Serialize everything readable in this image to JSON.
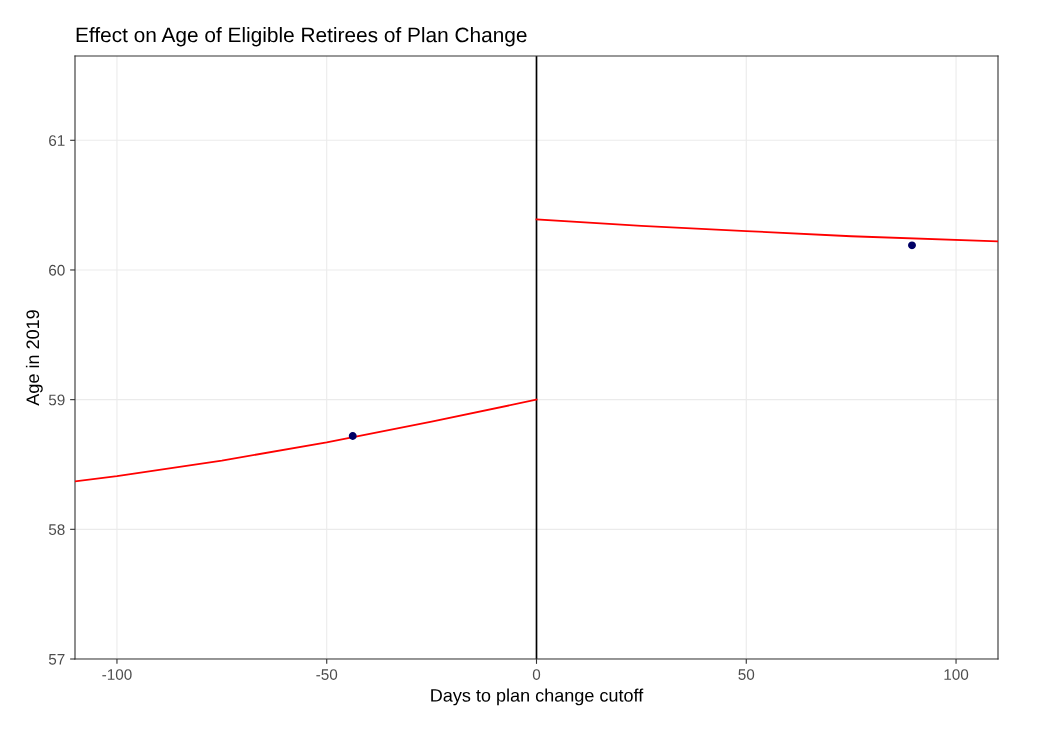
{
  "chart_data": {
    "type": "scatter",
    "title": "Effect on Age of Eligible Retirees of Plan Change",
    "xlabel": "Days to plan change cutoff",
    "ylabel": "Age in 2019",
    "series": [
      {
        "color": "#000066",
        "x": [
          -43.8,
          89.5
        ],
        "values": [
          58.72,
          60.19
        ]
      },
      {
        "type": "line",
        "color": "#ff0000",
        "x": [
          -110,
          -100,
          -75,
          -50,
          -25,
          0
        ],
        "values": [
          58.37,
          58.41,
          58.53,
          58.67,
          58.83,
          59.0
        ]
      },
      {
        "type": "line",
        "color": "#ff0000",
        "x": [
          0,
          25,
          50,
          75,
          110
        ],
        "values": [
          60.39,
          60.34,
          60.3,
          60.26,
          60.22
        ]
      }
    ],
    "xlim": [
      -110,
      110
    ],
    "xticks": [
      -100,
      -50,
      0,
      50,
      100
    ],
    "ylim": [
      57,
      61.65
    ],
    "yticks": [
      57,
      58,
      59,
      60,
      61
    ],
    "ref_lines": [
      {
        "axis": "x",
        "value": 0,
        "color": "#000000"
      }
    ],
    "grid": true
  }
}
